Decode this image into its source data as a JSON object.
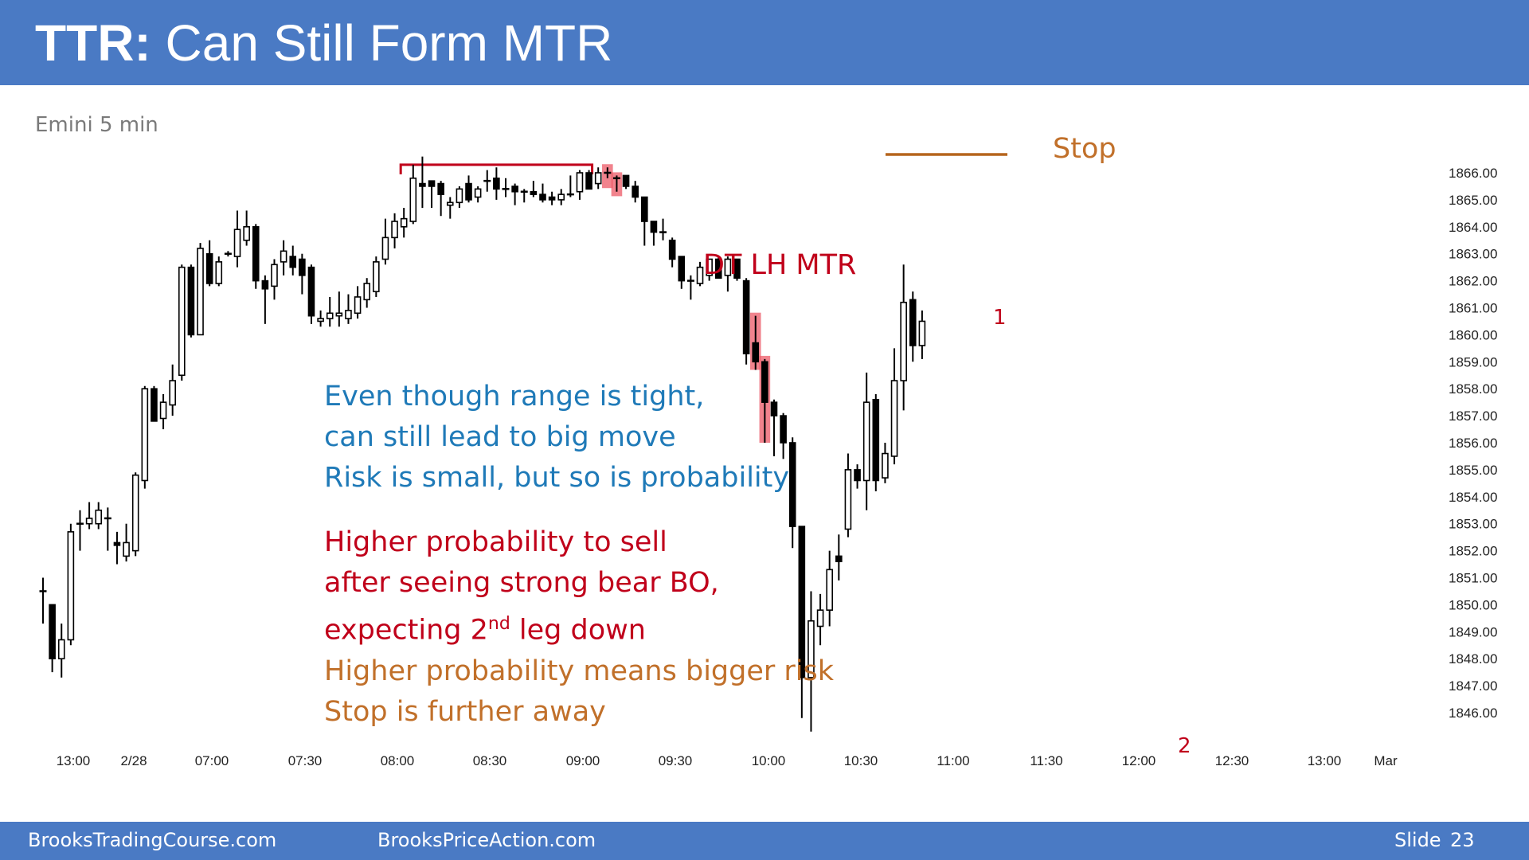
{
  "header": {
    "title_bold": "TTR:",
    "title_rest": " Can Still Form MTR"
  },
  "subtitle": "Emini 5 min",
  "footer": {
    "left": "BrooksTradingCourse.com",
    "middle": "BrooksPriceAction.com",
    "slide_label": "Slide",
    "slide_num": "23"
  },
  "annotations": {
    "stop": "Stop",
    "pattern": "DT LH MTR",
    "leg1": "1",
    "leg2": "2",
    "note_blue": [
      "Even though range is tight,",
      "can still lead to big move",
      "Risk is small, but so is probability"
    ],
    "note_red_1": "Higher probability to sell",
    "note_red_2": "after seeing strong bear BO,",
    "note_red_3_pre": "expecting 2",
    "note_red_3_sup": "nd",
    "note_red_3_post": " leg down",
    "note_orange": [
      "Higher probability means bigger risk",
      "Stop is further away"
    ]
  },
  "colors": {
    "header_bar": "#4a7ac4",
    "blue_text": "#1f7ab8",
    "red_text": "#c0001a",
    "orange_text": "#c1702a",
    "highlight": "#ec5a67"
  },
  "chart_data": {
    "type": "candlestick",
    "title": "Emini 5 min",
    "y_ticks": [
      "1866.00",
      "1865.00",
      "1864.00",
      "1863.00",
      "1862.00",
      "1861.00",
      "1860.00",
      "1859.00",
      "1858.00",
      "1857.00",
      "1856.00",
      "1855.00",
      "1854.00",
      "1853.00",
      "1852.00",
      "1851.00",
      "1850.00",
      "1849.00",
      "1848.00",
      "1847.00",
      "1846.00"
    ],
    "ylim": [
      1845.0,
      1866.9
    ],
    "x_ticks": [
      "13:00",
      "2/28",
      "07:00",
      "07:30",
      "08:00",
      "08:30",
      "09:00",
      "09:30",
      "10:00",
      "10:30",
      "11:00",
      "11:30",
      "12:00",
      "12:30",
      "13:00",
      "Mar"
    ],
    "series": [
      {
        "ohlc": [
          [
            1850.5,
            1851.0,
            1849.3,
            1850.5
          ],
          [
            1850.0,
            1850.0,
            1847.5,
            1848.0
          ],
          [
            1848.0,
            1849.3,
            1847.3,
            1848.7
          ],
          [
            1848.7,
            1853.0,
            1848.5,
            1852.7
          ],
          [
            1853.0,
            1853.5,
            1852.0,
            1853.0
          ],
          [
            1853.0,
            1853.8,
            1852.8,
            1853.2
          ],
          [
            1853.0,
            1853.8,
            1852.8,
            1853.5
          ],
          [
            1853.2,
            1853.6,
            1852.0,
            1853.2
          ],
          [
            1852.3,
            1852.7,
            1851.5,
            1852.2
          ],
          [
            1851.8,
            1853.0,
            1851.6,
            1852.3
          ],
          [
            1852.0,
            1854.9,
            1851.8,
            1854.8
          ],
          [
            1854.6,
            1858.1,
            1854.3,
            1858.0
          ],
          [
            1858.0,
            1858.1,
            1856.8,
            1856.8
          ],
          [
            1856.9,
            1857.8,
            1856.5,
            1857.5
          ],
          [
            1857.4,
            1858.9,
            1857.0,
            1858.3
          ],
          [
            1858.5,
            1862.6,
            1858.3,
            1862.5
          ],
          [
            1862.5,
            1862.6,
            1859.9,
            1860.0
          ],
          [
            1860.0,
            1863.4,
            1860.0,
            1863.2
          ],
          [
            1863.0,
            1863.5,
            1861.8,
            1861.9
          ],
          [
            1861.9,
            1862.9,
            1861.8,
            1862.7
          ],
          [
            1863.0,
            1863.1,
            1862.9,
            1863.0
          ],
          [
            1862.9,
            1864.6,
            1862.5,
            1863.9
          ],
          [
            1863.5,
            1864.6,
            1863.3,
            1864.0
          ],
          [
            1864.0,
            1864.1,
            1861.7,
            1862.0
          ],
          [
            1862.0,
            1862.2,
            1860.4,
            1861.7
          ],
          [
            1861.8,
            1862.8,
            1861.3,
            1862.6
          ],
          [
            1862.7,
            1863.5,
            1862.2,
            1863.1
          ],
          [
            1862.9,
            1863.3,
            1862.2,
            1862.5
          ],
          [
            1862.8,
            1863.0,
            1861.5,
            1862.2
          ],
          [
            1862.5,
            1862.6,
            1860.4,
            1860.7
          ],
          [
            1860.5,
            1860.9,
            1860.3,
            1860.6
          ],
          [
            1860.6,
            1861.4,
            1860.3,
            1860.8
          ],
          [
            1860.7,
            1861.6,
            1860.3,
            1860.8
          ],
          [
            1860.6,
            1861.5,
            1860.4,
            1860.9
          ],
          [
            1860.8,
            1861.8,
            1860.6,
            1861.4
          ],
          [
            1861.3,
            1862.1,
            1861.0,
            1861.9
          ],
          [
            1861.6,
            1862.9,
            1861.4,
            1862.7
          ],
          [
            1862.8,
            1864.3,
            1862.6,
            1863.6
          ],
          [
            1863.6,
            1864.5,
            1863.2,
            1864.2
          ],
          [
            1864.0,
            1864.7,
            1863.6,
            1864.3
          ],
          [
            1864.2,
            1866.3,
            1864.1,
            1865.8
          ],
          [
            1865.6,
            1866.6,
            1864.7,
            1865.5
          ],
          [
            1865.7,
            1865.7,
            1864.7,
            1865.5
          ],
          [
            1865.6,
            1865.7,
            1864.4,
            1865.2
          ],
          [
            1864.8,
            1865.1,
            1864.3,
            1864.9
          ],
          [
            1864.9,
            1865.5,
            1864.7,
            1865.4
          ],
          [
            1865.6,
            1865.9,
            1864.9,
            1865.0
          ],
          [
            1865.1,
            1865.5,
            1864.9,
            1865.4
          ],
          [
            1865.7,
            1866.1,
            1865.3,
            1865.7
          ],
          [
            1865.8,
            1866.2,
            1865.0,
            1865.4
          ],
          [
            1865.4,
            1865.8,
            1865.1,
            1865.4
          ],
          [
            1865.5,
            1865.6,
            1864.8,
            1865.3
          ],
          [
            1865.3,
            1865.4,
            1864.9,
            1865.3
          ],
          [
            1865.3,
            1865.7,
            1865.1,
            1865.2
          ],
          [
            1865.2,
            1865.6,
            1864.9,
            1865.0
          ],
          [
            1865.1,
            1865.3,
            1864.8,
            1865.0
          ],
          [
            1865.0,
            1865.4,
            1864.8,
            1865.2
          ],
          [
            1865.2,
            1865.9,
            1865.1,
            1865.2
          ],
          [
            1865.3,
            1866.1,
            1865.0,
            1866.0
          ],
          [
            1866.0,
            1866.1,
            1865.4,
            1865.4
          ],
          [
            1865.6,
            1866.2,
            1865.4,
            1866.0
          ],
          [
            1866.0,
            1866.2,
            1865.8,
            1866.0
          ],
          [
            1865.8,
            1865.9,
            1865.3,
            1865.8
          ],
          [
            1865.9,
            1865.9,
            1865.4,
            1865.5
          ],
          [
            1865.5,
            1865.7,
            1864.9,
            1865.1
          ],
          [
            1865.1,
            1865.1,
            1863.3,
            1864.2
          ],
          [
            1864.2,
            1864.2,
            1863.3,
            1863.8
          ],
          [
            1863.8,
            1864.3,
            1863.5,
            1863.8
          ],
          [
            1863.5,
            1863.6,
            1862.5,
            1862.8
          ],
          [
            1862.9,
            1862.9,
            1861.7,
            1862.0
          ],
          [
            1862.0,
            1862.2,
            1861.3,
            1862.0
          ],
          [
            1861.9,
            1862.7,
            1861.8,
            1862.5
          ],
          [
            1862.2,
            1862.8,
            1862.0,
            1862.8
          ],
          [
            1862.8,
            1862.9,
            1862.1,
            1862.1
          ],
          [
            1862.2,
            1862.9,
            1861.6,
            1862.8
          ],
          [
            1862.8,
            1862.8,
            1862.0,
            1862.1
          ],
          [
            1862.0,
            1862.1,
            1858.9,
            1859.3
          ],
          [
            1859.7,
            1860.7,
            1858.7,
            1859.0
          ],
          [
            1859.0,
            1859.1,
            1856.0,
            1857.5
          ],
          [
            1857.5,
            1857.6,
            1855.5,
            1857.0
          ],
          [
            1857.0,
            1857.1,
            1855.4,
            1856.0
          ],
          [
            1856.0,
            1856.2,
            1852.1,
            1852.9
          ],
          [
            1852.9,
            1852.9,
            1845.8,
            1847.3
          ],
          [
            1847.3,
            1850.5,
            1845.3,
            1849.4
          ],
          [
            1849.2,
            1850.4,
            1848.5,
            1849.8
          ],
          [
            1849.8,
            1852.0,
            1849.2,
            1851.3
          ],
          [
            1851.8,
            1852.6,
            1850.9,
            1851.6
          ],
          [
            1852.8,
            1855.6,
            1852.5,
            1855.0
          ],
          [
            1855.0,
            1855.2,
            1854.3,
            1854.6
          ],
          [
            1854.6,
            1858.6,
            1853.5,
            1857.5
          ],
          [
            1857.6,
            1857.8,
            1854.2,
            1854.6
          ],
          [
            1854.7,
            1856.0,
            1854.5,
            1855.6
          ],
          [
            1855.5,
            1859.5,
            1855.2,
            1858.3
          ],
          [
            1858.3,
            1862.6,
            1857.2,
            1861.2
          ],
          [
            1861.3,
            1861.6,
            1859.0,
            1859.6
          ],
          [
            1859.6,
            1860.9,
            1859.1,
            1860.5
          ]
        ],
        "highlight_bars": [
          61,
          62,
          77,
          78
        ],
        "stop_level": 1866.9,
        "resistance": {
          "from_bar": 39,
          "to_bar": 59,
          "level": 1866.3
        }
      }
    ]
  }
}
